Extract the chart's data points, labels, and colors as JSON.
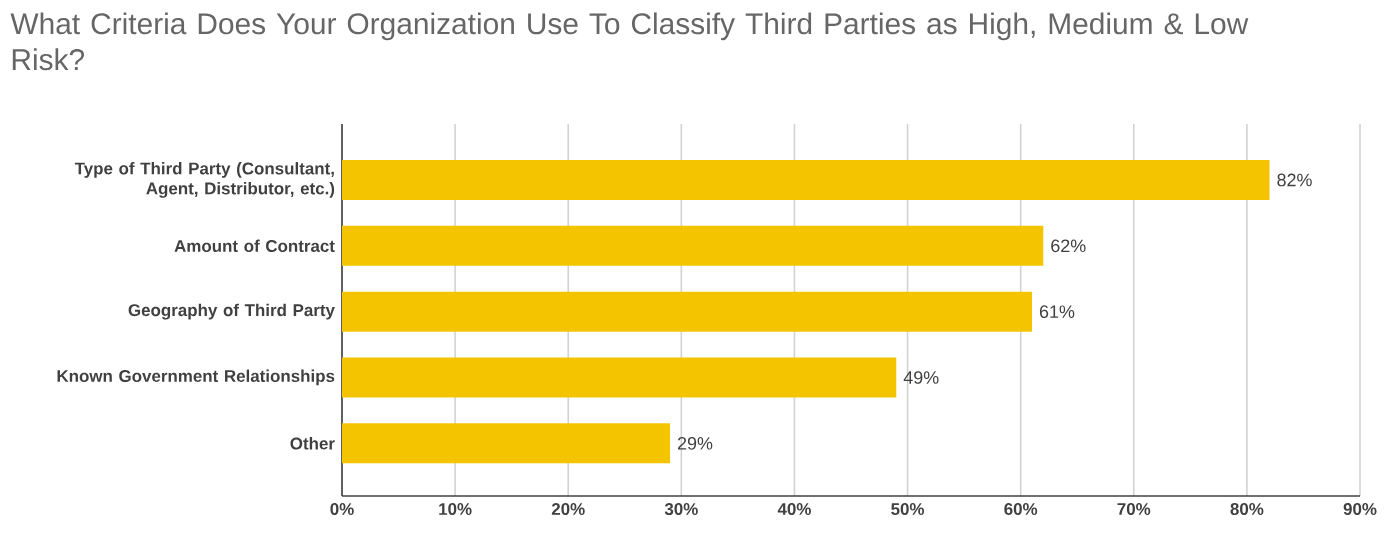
{
  "chart_data": {
    "type": "bar",
    "orientation": "horizontal",
    "title": "What Criteria Does Your Organization Use To Classify Third Parties as High, Medium & Low Risk?",
    "categories": [
      "Type of Third Party (Consultant, Agent, Distributor, etc.)",
      "Amount of Contract",
      "Geography of Third Party",
      "Known Government Relationships",
      "Other"
    ],
    "values": [
      82,
      62,
      61,
      49,
      29
    ],
    "value_labels": [
      "82%",
      "62%",
      "61%",
      "49%",
      "29%"
    ],
    "color": "#f5c400",
    "xlim": [
      0,
      90
    ],
    "xticks": [
      {
        "value": 0,
        "label": "0%"
      },
      {
        "value": 10,
        "label": "10%"
      },
      {
        "value": 20,
        "label": "20%"
      },
      {
        "value": 30,
        "label": "30%"
      },
      {
        "value": 40,
        "label": "40%"
      },
      {
        "value": 50,
        "label": "50%"
      },
      {
        "value": 60,
        "label": "60%"
      },
      {
        "value": 70,
        "label": "70%"
      },
      {
        "value": 80,
        "label": "80%"
      },
      {
        "value": 90,
        "label": "90%"
      }
    ],
    "grid": "x"
  }
}
